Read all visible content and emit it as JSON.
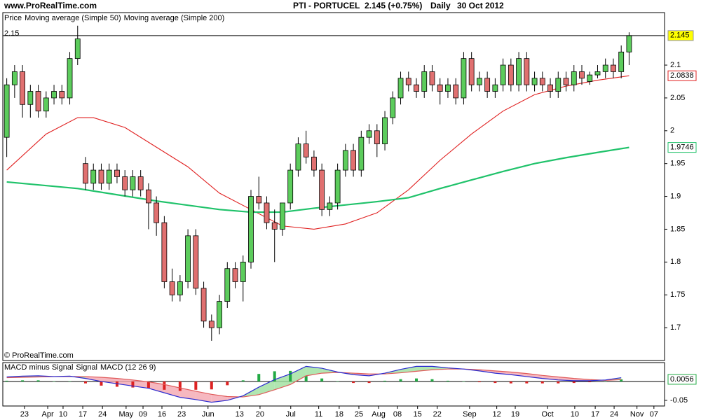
{
  "site": "www.ProRealTime.com",
  "copyright": "© ProRealTime.com",
  "header": {
    "symbol": "PTI - PORTUCEL",
    "quote": "2.145 (+0.75%)",
    "period": "Daily",
    "date": "30 Oct 2012"
  },
  "chart_data": [
    {
      "type": "candlestick",
      "legend_title": "Price",
      "left_label": "2.15",
      "up_color": "#5ccc5c",
      "down_color": "#e07070",
      "last_color": "#ffff00",
      "xlim": [
        -1,
        167
      ],
      "ylim": [
        1.65,
        2.18
      ],
      "yticks": [
        1.7,
        1.75,
        1.8,
        1.85,
        1.9,
        1.95,
        2,
        2.05,
        2.1
      ],
      "xticks": [
        {
          "value": 4.5,
          "label": "23"
        },
        {
          "value": 10.4,
          "label": "Apr"
        },
        {
          "value": 14.3,
          "label": "10"
        },
        {
          "value": 19.3,
          "label": "17"
        },
        {
          "value": 24.3,
          "label": "24"
        },
        {
          "value": 30.3,
          "label": "May"
        },
        {
          "value": 34.6,
          "label": "09"
        },
        {
          "value": 39.4,
          "label": "16"
        },
        {
          "value": 44.4,
          "label": "23"
        },
        {
          "value": 51.1,
          "label": "Jun"
        },
        {
          "value": 59.1,
          "label": "13"
        },
        {
          "value": 64.3,
          "label": "20"
        },
        {
          "value": 72.1,
          "label": "Jul"
        },
        {
          "value": 79.2,
          "label": "11"
        },
        {
          "value": 84.4,
          "label": "18"
        },
        {
          "value": 89.4,
          "label": "25"
        },
        {
          "value": 94.4,
          "label": "Aug"
        },
        {
          "value": 99.2,
          "label": "08"
        },
        {
          "value": 104.3,
          "label": "15"
        },
        {
          "value": 109.3,
          "label": "22"
        },
        {
          "value": 117.5,
          "label": "Sep"
        },
        {
          "value": 124.4,
          "label": "12"
        },
        {
          "value": 129.1,
          "label": "19"
        },
        {
          "value": 137.3,
          "label": "Oct"
        },
        {
          "value": 144.2,
          "label": "10"
        },
        {
          "value": 149.4,
          "label": "17"
        },
        {
          "value": 154.2,
          "label": "24"
        },
        {
          "value": 160.0,
          "label": "Nov"
        },
        {
          "value": 164.3,
          "label": "07"
        }
      ],
      "x": [
        0,
        2,
        4,
        6,
        8,
        10,
        12,
        14,
        16,
        18,
        20,
        22,
        24,
        26,
        28,
        30,
        32,
        34,
        36,
        38,
        40,
        42,
        44,
        46,
        48,
        50,
        52,
        54,
        56,
        58,
        60,
        62,
        64,
        66,
        68,
        70,
        72,
        74,
        76,
        78,
        80,
        82,
        84,
        86,
        88,
        90,
        92,
        94,
        96,
        98,
        100,
        102,
        104,
        106,
        108,
        110,
        112,
        114,
        116,
        118,
        120,
        122,
        124,
        126,
        128,
        130,
        132,
        134,
        136,
        138,
        140,
        142,
        144,
        146,
        148,
        150,
        152,
        154,
        156,
        158
      ],
      "open": [
        1.99,
        2.07,
        2.09,
        2.04,
        2.06,
        2.03,
        2.05,
        2.06,
        2.05,
        2.11,
        1.95,
        1.92,
        1.94,
        1.92,
        1.94,
        1.93,
        1.91,
        1.93,
        1.91,
        1.89,
        1.86,
        1.77,
        1.75,
        1.77,
        1.84,
        1.76,
        1.71,
        1.7,
        1.74,
        1.79,
        1.77,
        1.8,
        1.9,
        1.89,
        1.86,
        1.85,
        1.89,
        1.94,
        1.98,
        1.96,
        1.94,
        1.88,
        1.89,
        1.94,
        1.97,
        1.94,
        1.99,
        2.0,
        1.98,
        2.02,
        2.05,
        2.08,
        2.07,
        2.06,
        2.09,
        2.07,
        2.06,
        2.07,
        2.05,
        2.11,
        2.07,
        2.08,
        2.06,
        2.07,
        2.1,
        2.07,
        2.11,
        2.07,
        2.08,
        2.07,
        2.06,
        2.08,
        2.07,
        2.09,
        2.075,
        2.085,
        2.09,
        2.1,
        2.09,
        2.12
      ],
      "high": [
        2.08,
        2.1,
        2.1,
        2.07,
        2.07,
        2.06,
        2.07,
        2.07,
        2.12,
        2.16,
        1.96,
        1.95,
        1.95,
        1.95,
        1.95,
        1.94,
        1.94,
        1.94,
        1.92,
        1.9,
        1.87,
        1.79,
        1.78,
        1.85,
        1.85,
        1.77,
        1.72,
        1.75,
        1.8,
        1.8,
        1.81,
        1.91,
        1.93,
        1.9,
        1.88,
        1.89,
        1.95,
        1.99,
        2.0,
        1.97,
        1.95,
        1.9,
        1.95,
        1.98,
        1.98,
        2.0,
        2.01,
        2.01,
        2.03,
        2.06,
        2.09,
        2.09,
        2.08,
        2.1,
        2.1,
        2.08,
        2.08,
        2.08,
        2.12,
        2.12,
        2.09,
        2.09,
        2.08,
        2.11,
        2.11,
        2.12,
        2.12,
        2.09,
        2.09,
        2.08,
        2.09,
        2.09,
        2.1,
        2.1,
        2.09,
        2.1,
        2.11,
        2.11,
        2.13,
        2.15
      ],
      "low": [
        1.96,
        2.05,
        2.02,
        2.02,
        2.02,
        2.02,
        2.04,
        2.04,
        2.04,
        2.1,
        1.91,
        1.91,
        1.91,
        1.91,
        1.92,
        1.9,
        1.9,
        1.9,
        1.85,
        1.84,
        1.76,
        1.74,
        1.74,
        1.76,
        1.75,
        1.7,
        1.68,
        1.69,
        1.73,
        1.76,
        1.74,
        1.79,
        1.88,
        1.85,
        1.8,
        1.84,
        1.88,
        1.93,
        1.95,
        1.93,
        1.87,
        1.87,
        1.88,
        1.93,
        1.93,
        1.93,
        1.98,
        1.96,
        1.97,
        2.01,
        2.04,
        2.06,
        2.05,
        2.05,
        2.06,
        2.04,
        2.05,
        2.04,
        2.04,
        2.06,
        2.06,
        2.05,
        2.05,
        2.06,
        2.06,
        2.06,
        2.06,
        2.06,
        2.06,
        2.05,
        2.05,
        2.06,
        2.06,
        2.07,
        2.07,
        2.08,
        2.08,
        2.08,
        2.08,
        2.1
      ],
      "close": [
        2.07,
        2.09,
        2.04,
        2.06,
        2.03,
        2.05,
        2.06,
        2.05,
        2.11,
        2.14,
        1.92,
        1.94,
        1.92,
        1.94,
        1.93,
        1.91,
        1.93,
        1.91,
        1.89,
        1.86,
        1.77,
        1.75,
        1.77,
        1.84,
        1.76,
        1.71,
        1.7,
        1.74,
        1.79,
        1.77,
        1.8,
        1.9,
        1.89,
        1.86,
        1.85,
        1.89,
        1.94,
        1.98,
        1.96,
        1.94,
        1.88,
        1.89,
        1.94,
        1.97,
        1.94,
        1.99,
        2.0,
        1.98,
        2.02,
        2.05,
        2.08,
        2.07,
        2.06,
        2.09,
        2.07,
        2.06,
        2.07,
        2.05,
        2.11,
        2.07,
        2.08,
        2.06,
        2.07,
        2.1,
        2.07,
        2.11,
        2.07,
        2.08,
        2.07,
        2.06,
        2.08,
        2.07,
        2.09,
        2.08,
        2.085,
        2.09,
        2.1,
        2.09,
        2.12,
        2.145
      ],
      "series": [
        {
          "name": "Moving average (Simple 50)",
          "color": "#e02020",
          "x": [
            0,
            10,
            18,
            22,
            30,
            38,
            46,
            54,
            62,
            70,
            78,
            86,
            94,
            102,
            110,
            118,
            126,
            134,
            142,
            150,
            158
          ],
          "values": [
            1.94,
            1.995,
            2.02,
            2.02,
            2.005,
            1.975,
            1.945,
            1.905,
            1.88,
            1.855,
            1.85,
            1.858,
            1.875,
            1.91,
            1.955,
            1.995,
            2.03,
            2.055,
            2.068,
            2.077,
            2.0838
          ]
        },
        {
          "name": "Moving average (Simple 200)",
          "color": "#1fc26a",
          "x": [
            0,
            18,
            38,
            54,
            62,
            70,
            78,
            94,
            102,
            110,
            118,
            126,
            134,
            142,
            150,
            158
          ],
          "values": [
            1.922,
            1.912,
            1.893,
            1.88,
            1.876,
            1.876,
            1.882,
            1.892,
            1.898,
            1.912,
            1.925,
            1.938,
            1.95,
            1.959,
            1.967,
            1.9746
          ]
        }
      ]
    },
    {
      "type": "macd",
      "xlim": [
        -1,
        167
      ],
      "ylim": [
        -0.065,
        0.05
      ],
      "yticks": [
        -0.05
      ],
      "x": [
        0,
        4,
        8,
        12,
        16,
        20,
        24,
        28,
        32,
        36,
        40,
        44,
        48,
        52,
        56,
        60,
        64,
        68,
        72,
        76,
        80,
        84,
        88,
        92,
        96,
        100,
        104,
        108,
        112,
        116,
        120,
        124,
        128,
        132,
        136,
        140,
        144,
        148,
        152,
        156
      ],
      "series": [
        {
          "name": "MACD minus Signal",
          "color": "#22aa44",
          "negative_color": "#dd2222",
          "values": [
            0.002,
            0.003,
            0.003,
            0,
            0.001,
            -0.005,
            -0.011,
            -0.014,
            -0.016,
            -0.017,
            -0.022,
            -0.025,
            -0.022,
            -0.021,
            -0.01,
            0.003,
            0.02,
            0.027,
            0.028,
            0.015,
            0.008,
            0.001,
            -0.004,
            -0.004,
            0.002,
            0.006,
            0.008,
            0.006,
            0.002,
            0,
            -0.002,
            -0.004,
            -0.005,
            -0.005,
            -0.005,
            -0.005,
            -0.004,
            -0.002,
            0.001,
            0.0056
          ]
        },
        {
          "name": "Signal",
          "color": "#e05a5a",
          "values": [
            0.01,
            0.011,
            0.012,
            0.013,
            0.013,
            0.013,
            0.011,
            0.008,
            0.004,
            -0.001,
            -0.008,
            -0.017,
            -0.026,
            -0.034,
            -0.04,
            -0.041,
            -0.035,
            -0.022,
            -0.008,
            0.015,
            0.022,
            0.024,
            0.022,
            0.02,
            0.02,
            0.023,
            0.027,
            0.031,
            0.033,
            0.033,
            0.031,
            0.028,
            0.025,
            0.021,
            0.016,
            0.012,
            0.008,
            0.005,
            0.003,
            0.005
          ]
        },
        {
          "name": "MACD (12 26 9)",
          "color": "#2a2ad0",
          "values": [
            0.012,
            0.014,
            0.015,
            0.013,
            0.014,
            0.008,
            0,
            -0.006,
            -0.012,
            -0.018,
            -0.03,
            -0.042,
            -0.048,
            -0.055,
            -0.05,
            -0.038,
            -0.015,
            0.005,
            0.02,
            0.04,
            0.035,
            0.025,
            0.018,
            0.015,
            0.022,
            0.032,
            0.04,
            0.04,
            0.036,
            0.033,
            0.028,
            0.022,
            0.018,
            0.013,
            0.008,
            0.004,
            0.002,
            0.002,
            0.004,
            0.01
          ]
        }
      ]
    }
  ]
}
